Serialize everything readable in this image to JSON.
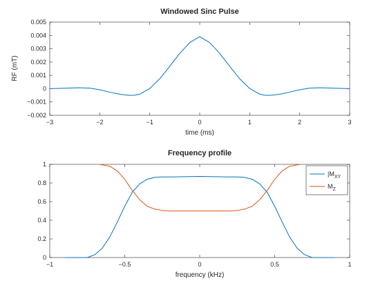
{
  "chart_data": [
    {
      "type": "line",
      "title": "Windowed Sinc Pulse",
      "xlabel": "time (ms)",
      "ylabel": "RF (mT)",
      "xlim": [
        -3,
        3
      ],
      "ylim": [
        -0.002,
        0.005
      ],
      "xticks": [
        "−3",
        "−2",
        "−1",
        "0",
        "1",
        "2",
        "3"
      ],
      "yticks": [
        "−0.002",
        "−0.001",
        "0",
        "0.001",
        "0.002",
        "0.003",
        "0.004",
        "0.005"
      ],
      "grid": false,
      "series": [
        {
          "color": "#0072bd",
          "x": [
            -3,
            -2.8,
            -2.6,
            -2.4,
            -2.2,
            -2.0,
            -1.8,
            -1.6,
            -1.4,
            -1.3,
            -1.2,
            -1.0,
            -0.8,
            -0.6,
            -0.4,
            -0.2,
            0,
            0.2,
            0.4,
            0.6,
            0.8,
            1.0,
            1.2,
            1.3,
            1.4,
            1.6,
            1.8,
            2.0,
            2.2,
            2.4,
            2.6,
            2.8,
            3
          ],
          "y": [
            0.0,
            2e-05,
            5e-05,
            7e-05,
            4e-05,
            -8e-05,
            -0.00026,
            -0.00042,
            -0.0005,
            -0.00049,
            -0.00041,
            1e-05,
            0.00074,
            0.00168,
            0.00265,
            0.00346,
            0.0039,
            0.00346,
            0.00265,
            0.00168,
            0.00074,
            1e-05,
            -0.00041,
            -0.00049,
            -0.0005,
            -0.00042,
            -0.00026,
            -8e-05,
            4e-05,
            7e-05,
            5e-05,
            2e-05,
            0.0
          ]
        }
      ]
    },
    {
      "type": "line",
      "title": "Frequency profile",
      "xlabel": "frequency (kHz)",
      "ylabel": "",
      "xlim": [
        -1,
        1
      ],
      "ylim": [
        0,
        1
      ],
      "xticks": [
        "−1",
        "−0.5",
        "0",
        "0.5",
        "1"
      ],
      "yticks": [
        "0",
        "0.2",
        "0.4",
        "0.6",
        "0.8",
        "1"
      ],
      "grid": false,
      "legend_position": "top-right",
      "series": [
        {
          "name": "|M",
          "subscript": "XY",
          "color": "#0072bd",
          "x": [
            -0.9,
            -0.8,
            -0.75,
            -0.7,
            -0.65,
            -0.6,
            -0.55,
            -0.5,
            -0.45,
            -0.4,
            -0.35,
            -0.3,
            -0.25,
            -0.2,
            0,
            0.2,
            0.25,
            0.3,
            0.35,
            0.4,
            0.45,
            0.5,
            0.55,
            0.6,
            0.65,
            0.7,
            0.75,
            0.8,
            0.9
          ],
          "y": [
            0,
            0,
            0.0,
            0.03,
            0.1,
            0.22,
            0.38,
            0.55,
            0.7,
            0.79,
            0.84,
            0.86,
            0.865,
            0.865,
            0.87,
            0.865,
            0.865,
            0.86,
            0.84,
            0.79,
            0.7,
            0.55,
            0.38,
            0.22,
            0.1,
            0.03,
            0.0,
            0,
            0
          ]
        },
        {
          "name": "M",
          "subscript": "Z",
          "color": "#d95319",
          "x": [
            -0.67,
            -0.6,
            -0.55,
            -0.5,
            -0.45,
            -0.4,
            -0.35,
            -0.3,
            -0.25,
            -0.2,
            0,
            0.2,
            0.25,
            0.3,
            0.35,
            0.4,
            0.45,
            0.5,
            0.55,
            0.6,
            0.67
          ],
          "y": [
            1,
            0.98,
            0.93,
            0.84,
            0.72,
            0.62,
            0.55,
            0.52,
            0.505,
            0.5,
            0.5,
            0.5,
            0.505,
            0.52,
            0.55,
            0.62,
            0.72,
            0.84,
            0.93,
            0.98,
            1
          ]
        }
      ]
    }
  ]
}
